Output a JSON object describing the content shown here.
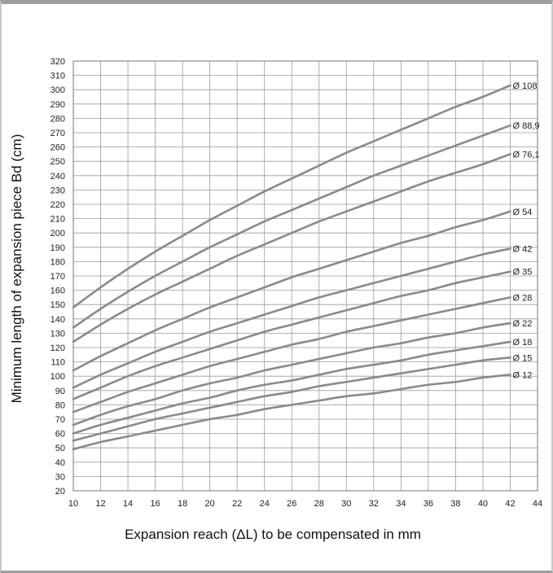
{
  "chart_data": {
    "type": "line",
    "xlabel": "Expansion reach (ΔL) to be compensated in mm",
    "ylabel": "Minimum length of expansion piece Bd (cm)",
    "xlim": [
      10,
      44
    ],
    "ylim": [
      20,
      320
    ],
    "xticks": [
      10,
      12,
      14,
      16,
      18,
      20,
      22,
      24,
      26,
      28,
      30,
      32,
      34,
      36,
      38,
      40,
      42,
      44
    ],
    "yticks": [
      20,
      30,
      40,
      50,
      60,
      70,
      80,
      90,
      100,
      110,
      120,
      130,
      140,
      150,
      160,
      170,
      180,
      190,
      200,
      210,
      220,
      230,
      240,
      250,
      260,
      270,
      280,
      290,
      300,
      310,
      320
    ],
    "grid": true,
    "legend": "labels at line ends (right)",
    "line_color": "#8a8a8a",
    "grid_color": "#9a9a9a",
    "x": [
      10,
      12,
      14,
      16,
      18,
      20,
      22,
      24,
      26,
      28,
      30,
      32,
      34,
      36,
      38,
      40,
      42
    ],
    "series": [
      {
        "name": "Ø 108",
        "values": [
          148,
          162,
          175,
          187,
          198,
          209,
          219,
          229,
          238,
          247,
          256,
          264,
          272,
          280,
          288,
          295,
          303
        ]
      },
      {
        "name": "Ø 88,9",
        "values": [
          134,
          147,
          159,
          170,
          180,
          190,
          199,
          208,
          216,
          224,
          232,
          240,
          247,
          254,
          261,
          268,
          275
        ]
      },
      {
        "name": "Ø 76,1",
        "values": [
          124,
          136,
          147,
          157,
          166,
          175,
          184,
          192,
          200,
          208,
          215,
          222,
          229,
          236,
          242,
          248,
          255
        ]
      },
      {
        "name": "Ø 54",
        "values": [
          104,
          114,
          123,
          132,
          140,
          148,
          155,
          162,
          169,
          175,
          181,
          187,
          193,
          198,
          204,
          209,
          215
        ]
      },
      {
        "name": "Ø 42",
        "values": [
          92,
          101,
          109,
          117,
          124,
          131,
          137,
          143,
          149,
          155,
          160,
          165,
          170,
          175,
          180,
          185,
          189
        ]
      },
      {
        "name": "Ø 35",
        "values": [
          84,
          92,
          100,
          107,
          113,
          119,
          125,
          131,
          136,
          141,
          146,
          151,
          156,
          160,
          165,
          169,
          173
        ]
      },
      {
        "name": "Ø 28",
        "values": [
          75,
          82,
          89,
          95,
          101,
          107,
          112,
          117,
          122,
          126,
          131,
          135,
          139,
          143,
          147,
          151,
          155
        ]
      },
      {
        "name": "Ø 22",
        "values": [
          66,
          73,
          79,
          84,
          90,
          95,
          99,
          104,
          108,
          112,
          116,
          120,
          123,
          127,
          130,
          134,
          137
        ]
      },
      {
        "name": "Ø 18",
        "values": [
          60,
          66,
          71,
          76,
          81,
          85,
          90,
          94,
          97,
          101,
          105,
          108,
          111,
          115,
          118,
          121,
          124
        ]
      },
      {
        "name": "Ø 15",
        "values": [
          55,
          60,
          65,
          70,
          74,
          78,
          82,
          86,
          89,
          93,
          96,
          99,
          102,
          105,
          108,
          111,
          113
        ]
      },
      {
        "name": "Ø 12",
        "values": [
          49,
          54,
          58,
          62,
          66,
          70,
          73,
          77,
          80,
          83,
          86,
          88,
          91,
          94,
          96,
          99,
          101
        ]
      }
    ]
  }
}
